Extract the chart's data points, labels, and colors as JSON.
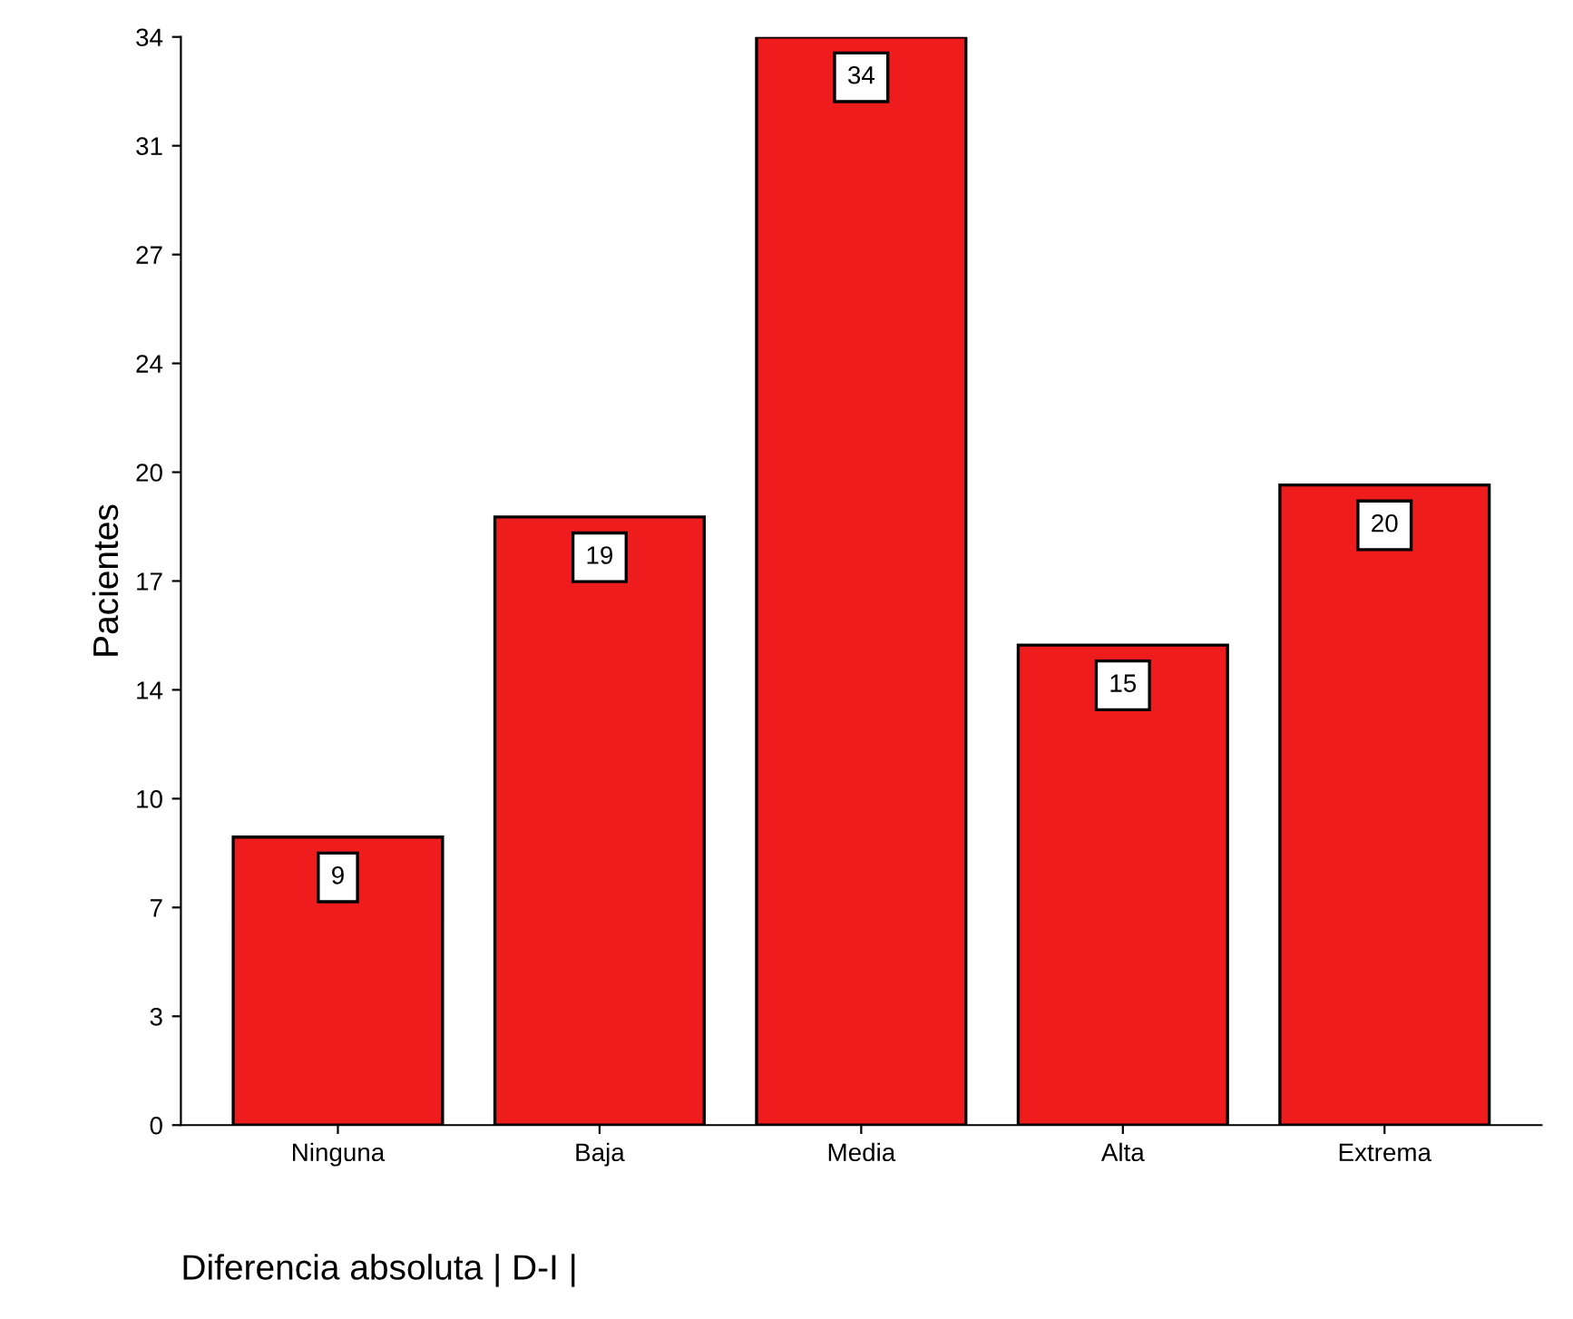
{
  "chart_data": {
    "type": "bar",
    "xlabel": "Diferencia absoluta | D-I |",
    "ylabel": "Pacientes",
    "categories": [
      "Ninguna",
      "Baja",
      "Media",
      "Alta",
      "Extrema"
    ],
    "values": [
      9,
      19,
      34,
      15,
      20
    ],
    "color": "#ee1c1c",
    "data_labels": true,
    "grid": false,
    "legend": false,
    "ylim": [
      0,
      34
    ],
    "yticks": [
      0,
      {
        "value": 3.4,
        "label": "3"
      },
      {
        "value": 6.8,
        "label": "7"
      },
      {
        "value": 10.2,
        "label": "10"
      },
      {
        "value": 13.6,
        "label": "14"
      },
      {
        "value": 17,
        "label": "17"
      },
      {
        "value": 20.4,
        "label": "20"
      },
      {
        "value": 23.8,
        "label": "24"
      },
      {
        "value": 27.2,
        "label": "27"
      },
      {
        "value": 30.6,
        "label": "31"
      },
      34
    ]
  }
}
